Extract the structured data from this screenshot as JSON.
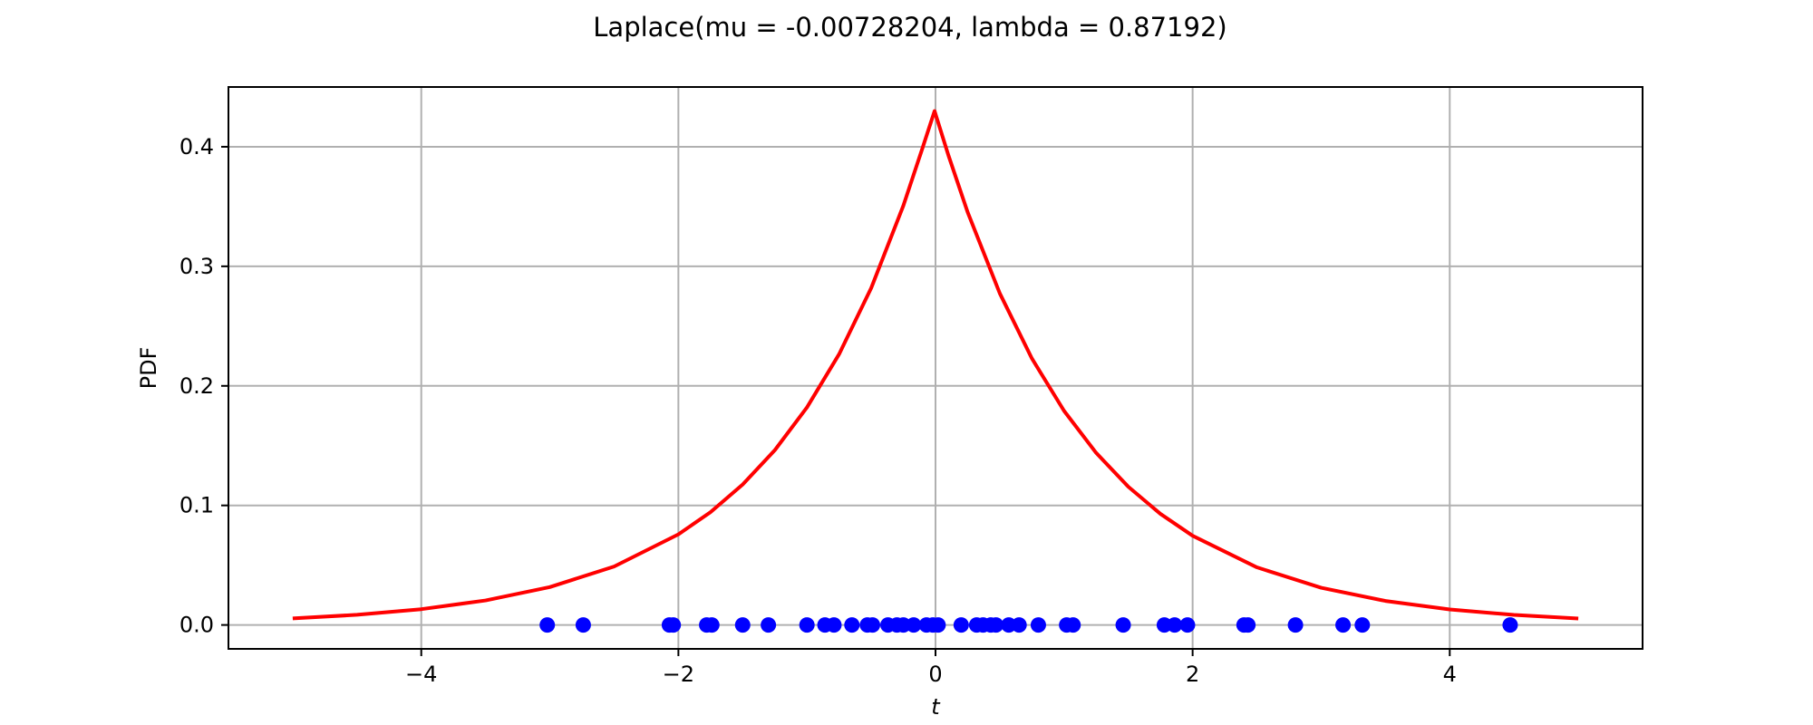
{
  "chart_data": {
    "type": "line",
    "title": "Laplace(mu = -0.00728204, lambda = 0.87192)",
    "xlabel": "t",
    "ylabel": "PDF",
    "xlim": [
      -5.5,
      5.5
    ],
    "ylim": [
      -0.02,
      0.45
    ],
    "grid": true,
    "x_ticks": [
      {
        "value": -4,
        "label": "−4"
      },
      {
        "value": -2,
        "label": "−2"
      },
      {
        "value": 0,
        "label": "0"
      },
      {
        "value": 2,
        "label": "2"
      },
      {
        "value": 4,
        "label": "4"
      }
    ],
    "y_ticks": [
      {
        "value": 0.0,
        "label": "0.0"
      },
      {
        "value": 0.1,
        "label": "0.1"
      },
      {
        "value": 0.2,
        "label": "0.2"
      },
      {
        "value": 0.3,
        "label": "0.3"
      },
      {
        "value": 0.4,
        "label": "0.4"
      }
    ],
    "series": [
      {
        "kind": "line",
        "color": "#ff0000",
        "x": [
          -5.0,
          -4.5,
          -4.0,
          -3.5,
          -3.0,
          -2.5,
          -2.0,
          -1.75,
          -1.5,
          -1.25,
          -1.0,
          -0.75,
          -0.5,
          -0.25,
          -0.1,
          -0.00728,
          0.1,
          0.25,
          0.5,
          0.75,
          1.0,
          1.25,
          1.5,
          1.75,
          2.0,
          2.5,
          3.0,
          3.5,
          4.0,
          4.5,
          5.0
        ],
        "y": [
          0.0055,
          0.0085,
          0.0132,
          0.0205,
          0.0317,
          0.0489,
          0.0758,
          0.0944,
          0.1175,
          0.1462,
          0.182,
          0.2265,
          0.2819,
          0.3508,
          0.3993,
          0.4299,
          0.393,
          0.3453,
          0.2774,
          0.2229,
          0.1791,
          0.1439,
          0.1156,
          0.0929,
          0.0746,
          0.0482,
          0.0311,
          0.0201,
          0.013,
          0.0084,
          0.0054
        ]
      },
      {
        "kind": "scatter",
        "color": "#0000ff",
        "x": [
          -3.02,
          -2.74,
          -2.07,
          -2.04,
          -1.78,
          -1.74,
          -1.5,
          -1.3,
          -1.0,
          -0.86,
          -0.79,
          -0.65,
          -0.53,
          -0.49,
          -0.37,
          -0.3,
          -0.25,
          -0.17,
          -0.07,
          -0.02,
          0.02,
          0.2,
          0.32,
          0.37,
          0.43,
          0.47,
          0.57,
          0.65,
          0.8,
          1.02,
          1.07,
          1.46,
          1.78,
          1.86,
          1.96,
          2.4,
          2.43,
          2.8,
          3.17,
          3.32,
          4.47
        ],
        "y": [
          0,
          0,
          0,
          0,
          0,
          0,
          0,
          0,
          0,
          0,
          0,
          0,
          0,
          0,
          0,
          0,
          0,
          0,
          0,
          0,
          0,
          0,
          0,
          0,
          0,
          0,
          0,
          0,
          0,
          0,
          0,
          0,
          0,
          0,
          0,
          0,
          0,
          0,
          0,
          0,
          0
        ]
      }
    ]
  }
}
